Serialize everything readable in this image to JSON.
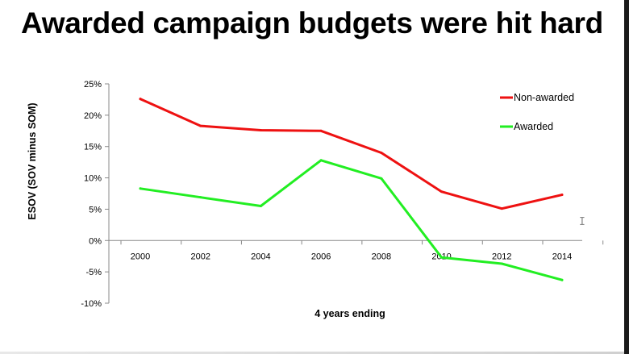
{
  "page": {
    "title": "Awarded campaign budgets were hit hard"
  },
  "chart_data": {
    "type": "line",
    "title": "Awarded campaign budgets were hit hard",
    "xlabel": "4 years ending",
    "ylabel": "ESOV (SOV minus SOM)",
    "x": [
      2000,
      2002,
      2004,
      2006,
      2008,
      2010,
      2012,
      2014
    ],
    "x_tick_labels": [
      "2000",
      "2002",
      "2004",
      "2006",
      "2008",
      "2010",
      "2012",
      "2014"
    ],
    "ylim": [
      -10,
      25
    ],
    "y_ticks": [
      25,
      20,
      15,
      10,
      5,
      0,
      -5,
      -10
    ],
    "y_tick_labels": [
      "25%",
      "20%",
      "15%",
      "10%",
      "5%",
      "0%",
      "-5%",
      "-10%"
    ],
    "grid": false,
    "legend_position": "top-right",
    "series": [
      {
        "name": "Non-awarded",
        "color": "#ee1111",
        "values": [
          22.6,
          18.3,
          17.6,
          17.5,
          14.0,
          7.8,
          5.1,
          7.3
        ]
      },
      {
        "name": "Awarded",
        "color": "#22ee22",
        "values": [
          8.3,
          6.9,
          5.5,
          12.8,
          9.9,
          -2.7,
          -3.7,
          -6.3
        ]
      }
    ]
  }
}
